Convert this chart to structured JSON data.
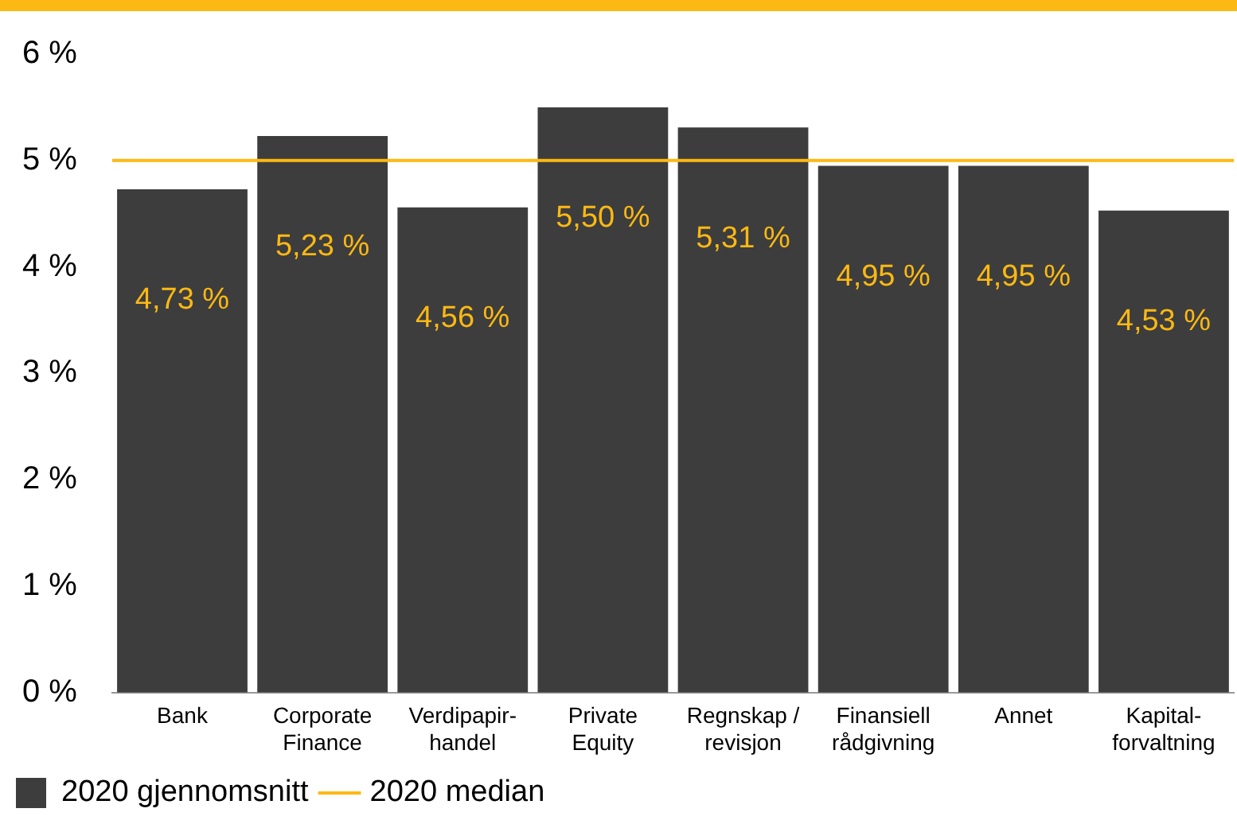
{
  "chart_data": {
    "type": "bar",
    "categories": [
      "Bank",
      "Corporate\nFinance",
      "Verdipapir-\nhandel",
      "Private\nEquity",
      "Regnskap /\nrevisjon",
      "Finansiell\nrådgivning",
      "Annet",
      "Kapital-\nforvaltning"
    ],
    "series": [
      {
        "name": "2020 gjennomsnitt",
        "color": "#3d3d3d",
        "values": [
          4.73,
          5.23,
          4.56,
          5.5,
          5.31,
          4.95,
          4.95,
          4.53
        ],
        "value_labels": [
          "4,73 %",
          "5,23 %",
          "4,56 %",
          "5,50 %",
          "5,31 %",
          "4,95 %",
          "4,95 %",
          "4,53 %"
        ]
      }
    ],
    "ylim": [
      0,
      6
    ],
    "yticks": [
      {
        "value": 0,
        "label": "0 %"
      },
      {
        "value": 1,
        "label": "1 %"
      },
      {
        "value": 2,
        "label": "2 %"
      },
      {
        "value": 3,
        "label": "3 %"
      },
      {
        "value": 4,
        "label": "4 %"
      },
      {
        "value": 5,
        "label": "5 %"
      },
      {
        "value": 6,
        "label": "6 %"
      }
    ],
    "ref_lines": [
      {
        "axis": "y",
        "value": 5,
        "label": "2020 median",
        "color": "#fdb913"
      }
    ],
    "grid": false,
    "legend": "bottom left"
  }
}
